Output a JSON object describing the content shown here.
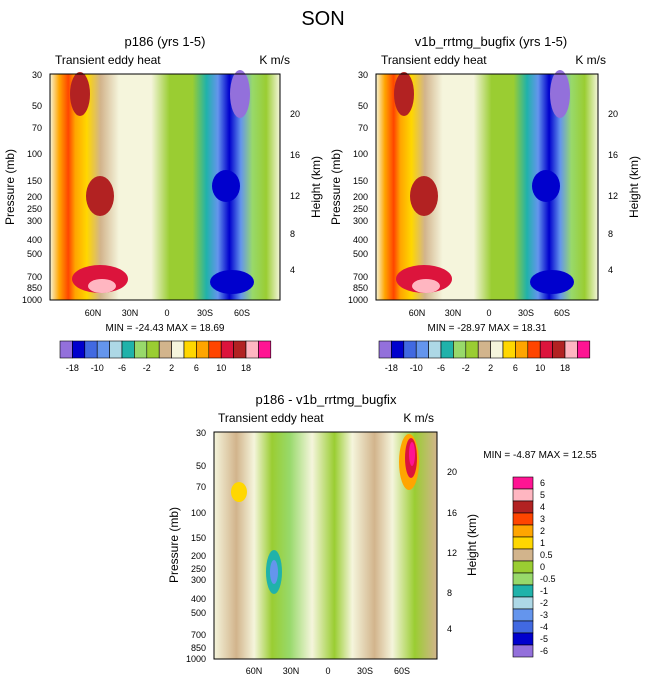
{
  "suptitle": "SON",
  "chart_data": [
    {
      "type": "heatmap",
      "panel": "p186",
      "title": "p186 (yrs 1-5)",
      "subtitle_left": "Transient eddy heat",
      "subtitle_right": "K m/s",
      "ylabel": "Pressure (mb)",
      "ylabel_right": "Height (km)",
      "y_ticks": [
        "30",
        "50",
        "70",
        "100",
        "150",
        "200",
        "250",
        "300",
        "400",
        "500",
        "700",
        "850",
        "1000"
      ],
      "y_right_ticks": [
        "20",
        "16",
        "12",
        "8",
        "4"
      ],
      "x_ticks": [
        "60N",
        "30N",
        "0",
        "30S",
        "60S"
      ],
      "min_max": "MIN = -24.43  MAX =  18.69",
      "min": -24.43,
      "max": 18.69
    },
    {
      "type": "heatmap",
      "panel": "v1b_rrtmg_bugfix",
      "title": "v1b_rrtmg_bugfix (yrs 1-5)",
      "subtitle_left": "Transient eddy heat",
      "subtitle_right": "K m/s",
      "ylabel": "Pressure (mb)",
      "ylabel_right": "Height (km)",
      "y_ticks": [
        "30",
        "50",
        "70",
        "100",
        "150",
        "200",
        "250",
        "300",
        "400",
        "500",
        "700",
        "850",
        "1000"
      ],
      "y_right_ticks": [
        "20",
        "16",
        "12",
        "8",
        "4"
      ],
      "x_ticks": [
        "60N",
        "30N",
        "0",
        "30S",
        "60S"
      ],
      "min_max": "MIN = -28.97  MAX =  18.31",
      "min": -28.97,
      "max": 18.31
    },
    {
      "type": "heatmap",
      "panel": "difference",
      "title": "p186 - v1b_rrtmg_bugfix",
      "subtitle_left": "Transient eddy heat",
      "subtitle_right": "K m/s",
      "ylabel": "Pressure (mb)",
      "ylabel_right": "Height (km)",
      "y_ticks": [
        "30",
        "50",
        "70",
        "100",
        "150",
        "200",
        "250",
        "300",
        "400",
        "500",
        "700",
        "850",
        "1000"
      ],
      "y_right_ticks": [
        "20",
        "16",
        "12",
        "8",
        "4"
      ],
      "x_ticks": [
        "60N",
        "30N",
        "0",
        "30S",
        "60S"
      ],
      "min_max": "MIN = -4.87  MAX = 12.55",
      "min": -4.87,
      "max": 12.55
    }
  ],
  "colorbar_main": {
    "colors": [
      "#9370db",
      "#0000cd",
      "#4169e1",
      "#6495ed",
      "#add8e6",
      "#20b2aa",
      "#98d96b",
      "#9acd32",
      "#d2b48c",
      "#f5f5dc",
      "#ffd700",
      "#ffa500",
      "#ff4500",
      "#dc143c",
      "#b22222",
      "#ffb6c1",
      "#ff1493"
    ],
    "labels": [
      "-18",
      "-10",
      "-6",
      "-2",
      "2",
      "6",
      "10",
      "18"
    ]
  },
  "colorbar_diff": {
    "colors": [
      "#ff1493",
      "#ffb6c1",
      "#b22222",
      "#ff4500",
      "#ffa500",
      "#ffd700",
      "#d2b48c",
      "#9acd32",
      "#98d96b",
      "#20b2aa",
      "#add8e6",
      "#6495ed",
      "#4169e1",
      "#0000cd",
      "#9370db"
    ],
    "labels": [
      "6",
      "5",
      "4",
      "3",
      "2",
      "1",
      "0.5",
      "0",
      "-0.5",
      "-1",
      "-2",
      "-3",
      "-4",
      "-5",
      "-6"
    ]
  }
}
